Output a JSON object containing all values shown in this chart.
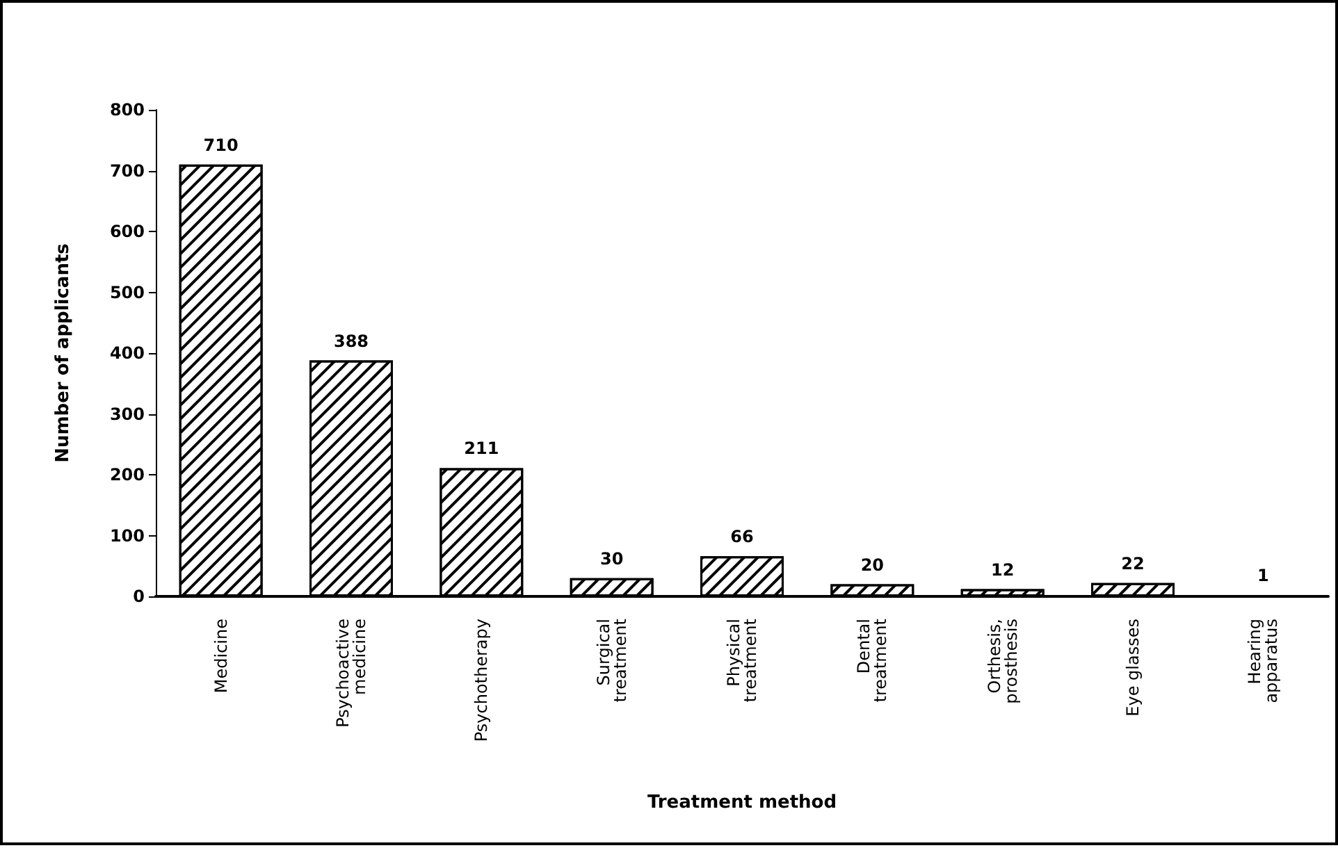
{
  "chart_data": {
    "type": "bar",
    "xlabel": "Treatment method",
    "ylabel": "Number of applicants",
    "categories": [
      "Medicine",
      "Psychoactive\nmedicine",
      "Psychotherapy",
      "Surgical\ntreatment",
      "Physical\ntreatment",
      "Dental\ntreatment",
      "Orthesis,\nprosthesis",
      "Eye glasses",
      "Hearing\napparatus"
    ],
    "values": [
      710,
      388,
      211,
      30,
      66,
      20,
      12,
      22,
      1
    ],
    "color": "#000000",
    "ylim": [
      0,
      800
    ],
    "yticks": [
      0,
      100,
      200,
      300,
      400,
      500,
      600,
      700,
      800
    ],
    "grid": false,
    "data_labels": true
  }
}
